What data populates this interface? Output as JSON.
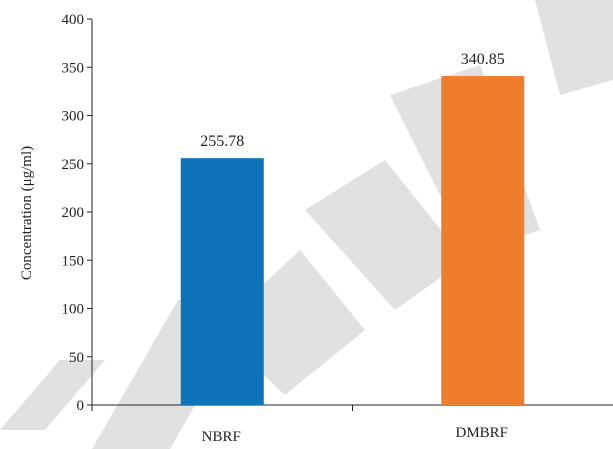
{
  "chart_data": {
    "type": "bar",
    "categories": [
      "NBRF",
      "DMBRF"
    ],
    "values": [
      255.78,
      340.85
    ],
    "data_labels": [
      "255.78",
      "340.85"
    ],
    "colors": [
      "#0f73b9",
      "#f07d2c"
    ],
    "xlabel": "",
    "ylabel": "Concentration (μg/ml)",
    "ylim": [
      0,
      400
    ],
    "yticks": [
      0,
      50,
      100,
      150,
      200,
      250,
      300,
      350,
      400
    ],
    "grid": false,
    "legend": "none"
  },
  "watermark": {
    "text": "RETRACTED",
    "color": "#c8c8c8"
  }
}
